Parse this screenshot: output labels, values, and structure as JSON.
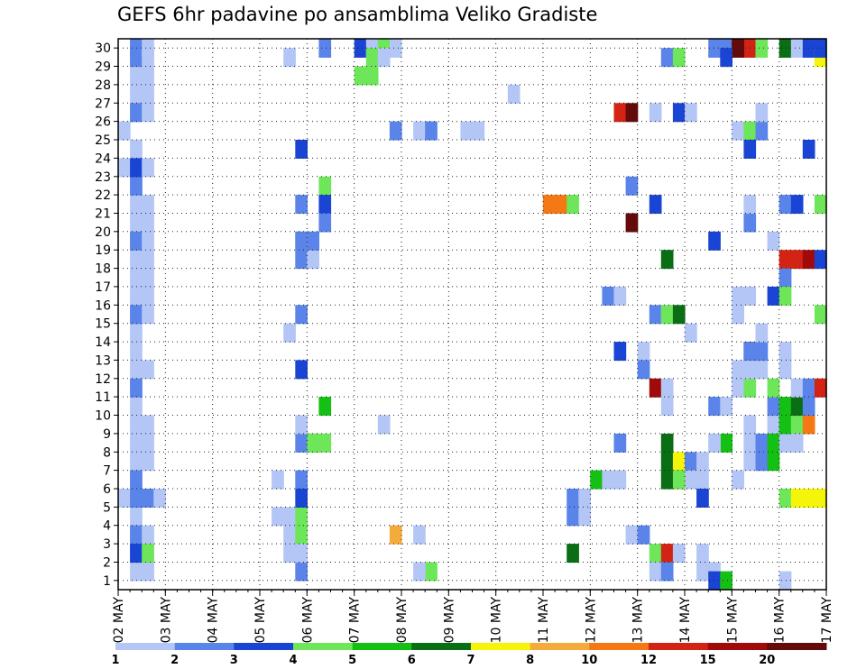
{
  "chart_data": {
    "type": "heatmap",
    "title": "GEFS 6hr padavine po ansamblima Veliko Gradiste",
    "x_tick_labels": [
      "02 MAY",
      "03 MAY",
      "04 MAY",
      "05 MAY",
      "06 MAY",
      "07 MAY",
      "08 MAY",
      "09 MAY",
      "10 MAY",
      "11 MAY",
      "12 MAY",
      "13 MAY",
      "14 MAY",
      "15 MAY",
      "16 MAY",
      "17 MAY"
    ],
    "y_tick_labels": [
      "1",
      "2",
      "3",
      "4",
      "5",
      "6",
      "7",
      "8",
      "9",
      "10",
      "11",
      "12",
      "13",
      "14",
      "15",
      "16",
      "17",
      "18",
      "19",
      "20",
      "21",
      "22",
      "23",
      "24",
      "25",
      "26",
      "27",
      "28",
      "29",
      "30"
    ],
    "y_range": [
      0,
      30
    ],
    "x_steps": 60,
    "grid": true,
    "legend_placement": "bottom",
    "legend": {
      "labels": [
        "1",
        "2",
        "3",
        "4",
        "5",
        "6",
        "7",
        "8",
        "10",
        "12",
        "15",
        "20"
      ],
      "colors": [
        "#b4c6f5",
        "#5a84ea",
        "#1a44d4",
        "#6ee65a",
        "#14c014",
        "#0a6e14",
        "#f5f50a",
        "#f5aa3c",
        "#f57814",
        "#d22314",
        "#a00a0a",
        "#640a0a"
      ]
    },
    "cells": [
      [
        1,
        29,
        1
      ],
      [
        1,
        28,
        1
      ],
      [
        1,
        27,
        1
      ],
      [
        1,
        26,
        1
      ],
      [
        1,
        25,
        1
      ],
      [
        1,
        23,
        1
      ],
      [
        1,
        16,
        1
      ],
      [
        1,
        17,
        1
      ],
      [
        1,
        15,
        1
      ],
      [
        1,
        13,
        1
      ],
      [
        1,
        12,
        1
      ],
      [
        1,
        10,
        1
      ],
      [
        1,
        9,
        1
      ],
      [
        1,
        8,
        1
      ],
      [
        1,
        7,
        1
      ],
      [
        1,
        6,
        1
      ],
      [
        1,
        5,
        1
      ],
      [
        1,
        4,
        1
      ],
      [
        1,
        3,
        1
      ],
      [
        1,
        2,
        1
      ],
      [
        1,
        1,
        1
      ],
      [
        1,
        0,
        1
      ],
      [
        1,
        18,
        1
      ],
      [
        1,
        19,
        1
      ],
      [
        1,
        20,
        1
      ],
      [
        1,
        21,
        1
      ],
      [
        1,
        22,
        1
      ],
      [
        1,
        14,
        1
      ],
      [
        1,
        11,
        1
      ],
      [
        0,
        24,
        1
      ],
      [
        0,
        22,
        1
      ],
      [
        0,
        4,
        1
      ],
      [
        1,
        29,
        2
      ],
      [
        1,
        28,
        2
      ],
      [
        1,
        25,
        2
      ],
      [
        1,
        21,
        2
      ],
      [
        1,
        18,
        2
      ],
      [
        1,
        14,
        2
      ],
      [
        1,
        10,
        2
      ],
      [
        1,
        4,
        2
      ],
      [
        1,
        2,
        2
      ],
      [
        1,
        5,
        2
      ],
      [
        1,
        22,
        3
      ],
      [
        1,
        1,
        3
      ],
      [
        2,
        29,
        1
      ],
      [
        2,
        28,
        1
      ],
      [
        2,
        27,
        1
      ],
      [
        2,
        26,
        1
      ],
      [
        2,
        25,
        1
      ],
      [
        2,
        22,
        1
      ],
      [
        2,
        20,
        1
      ],
      [
        2,
        19,
        1
      ],
      [
        2,
        18,
        1
      ],
      [
        2,
        17,
        1
      ],
      [
        2,
        16,
        1
      ],
      [
        2,
        15,
        1
      ],
      [
        2,
        14,
        1
      ],
      [
        2,
        11,
        1
      ],
      [
        2,
        8,
        1
      ],
      [
        2,
        7,
        1
      ],
      [
        2,
        6,
        1
      ],
      [
        2,
        4,
        2
      ],
      [
        2,
        2,
        1
      ],
      [
        2,
        0,
        1
      ],
      [
        2,
        1,
        4
      ],
      [
        3,
        4,
        1
      ],
      [
        13,
        5,
        1
      ],
      [
        13,
        3,
        1
      ],
      [
        14,
        28,
        1
      ],
      [
        14,
        13,
        1
      ],
      [
        14,
        3,
        1
      ],
      [
        14,
        2,
        1
      ],
      [
        14,
        1,
        1
      ],
      [
        15,
        20,
        2
      ],
      [
        15,
        23,
        3
      ],
      [
        15,
        17,
        2
      ],
      [
        15,
        14,
        2
      ],
      [
        15,
        11,
        3
      ],
      [
        15,
        7,
        2
      ],
      [
        15,
        5,
        2
      ],
      [
        15,
        3,
        4
      ],
      [
        15,
        2,
        4
      ],
      [
        15,
        0,
        2
      ],
      [
        15,
        8,
        1
      ],
      [
        15,
        1,
        1
      ],
      [
        15,
        4,
        3
      ],
      [
        15,
        18,
        4
      ],
      [
        15,
        18,
        2
      ],
      [
        16,
        18,
        1
      ],
      [
        16,
        17,
        1
      ],
      [
        16,
        18,
        2
      ],
      [
        16,
        7,
        6
      ],
      [
        16,
        7,
        4
      ],
      [
        17,
        9,
        5
      ],
      [
        17,
        7,
        4
      ],
      [
        17,
        29,
        2
      ],
      [
        17,
        21,
        4
      ],
      [
        17,
        20,
        3
      ],
      [
        17,
        19,
        2
      ],
      [
        20,
        29,
        3
      ],
      [
        21,
        29,
        1
      ],
      [
        21,
        28,
        4
      ],
      [
        22,
        29,
        4
      ],
      [
        20,
        27,
        4
      ],
      [
        21,
        27,
        4
      ],
      [
        23,
        2,
        8
      ],
      [
        22,
        8,
        1
      ],
      [
        22,
        28,
        1
      ],
      [
        23,
        24,
        2
      ],
      [
        23,
        29,
        1
      ],
      [
        25,
        24,
        1
      ],
      [
        25,
        2,
        1
      ],
      [
        26,
        24,
        2
      ],
      [
        26,
        0,
        4
      ],
      [
        25,
        0,
        1
      ],
      [
        29,
        24,
        1
      ],
      [
        30,
        24,
        1
      ],
      [
        33,
        26,
        1
      ],
      [
        36,
        20,
        9
      ],
      [
        37,
        20,
        9
      ],
      [
        38,
        20,
        4
      ],
      [
        38,
        3,
        2
      ],
      [
        39,
        3,
        1
      ],
      [
        38,
        1,
        6
      ],
      [
        38,
        4,
        2
      ],
      [
        39,
        4,
        1
      ],
      [
        40,
        5,
        5
      ],
      [
        41,
        5,
        1
      ],
      [
        42,
        5,
        1
      ],
      [
        41,
        15,
        2
      ],
      [
        42,
        15,
        1
      ],
      [
        42,
        25,
        10
      ],
      [
        43,
        25,
        12
      ],
      [
        43,
        19,
        12
      ],
      [
        43,
        21,
        2
      ],
      [
        42,
        12,
        3
      ],
      [
        42,
        7,
        2
      ],
      [
        43,
        2,
        1
      ],
      [
        44,
        2,
        2
      ],
      [
        44,
        12,
        1
      ],
      [
        44,
        11,
        2
      ],
      [
        45,
        10,
        11
      ],
      [
        46,
        10,
        1
      ],
      [
        45,
        25,
        1
      ],
      [
        45,
        20,
        3
      ],
      [
        45,
        14,
        2
      ],
      [
        46,
        14,
        1
      ],
      [
        46,
        28,
        2
      ],
      [
        47,
        28,
        4
      ],
      [
        45,
        1,
        4
      ],
      [
        46,
        1,
        10
      ],
      [
        47,
        1,
        1
      ],
      [
        45,
        0,
        1
      ],
      [
        46,
        0,
        2
      ],
      [
        46,
        17,
        6
      ],
      [
        46,
        14,
        4
      ],
      [
        47,
        14,
        6
      ],
      [
        46,
        6,
        6
      ],
      [
        46,
        7,
        6
      ],
      [
        46,
        5,
        6
      ],
      [
        47,
        6,
        7
      ],
      [
        47,
        5,
        11
      ],
      [
        48,
        6,
        2
      ],
      [
        48,
        5,
        1
      ],
      [
        49,
        6,
        1
      ],
      [
        49,
        5,
        1
      ],
      [
        46,
        9,
        1
      ],
      [
        47,
        25,
        3
      ],
      [
        48,
        25,
        1
      ],
      [
        48,
        13,
        1
      ],
      [
        47,
        5,
        4
      ],
      [
        49,
        4,
        3
      ],
      [
        49,
        1,
        1
      ],
      [
        49,
        0,
        1
      ],
      [
        50,
        0,
        1
      ],
      [
        50,
        18,
        3
      ],
      [
        50,
        9,
        2
      ],
      [
        51,
        9,
        1
      ],
      [
        50,
        29,
        2
      ],
      [
        51,
        29,
        2
      ],
      [
        52,
        29,
        11
      ],
      [
        53,
        29,
        10
      ],
      [
        54,
        29,
        4
      ],
      [
        50,
        -1,
        3
      ],
      [
        51,
        -1,
        5
      ],
      [
        52,
        29,
        12
      ],
      [
        51,
        28,
        3
      ],
      [
        51,
        7,
        5
      ],
      [
        50,
        7,
        1
      ],
      [
        52,
        24,
        1
      ],
      [
        52,
        14,
        1
      ],
      [
        52,
        10,
        1
      ],
      [
        53,
        10,
        4
      ],
      [
        52,
        11,
        1
      ],
      [
        52,
        5,
        1
      ],
      [
        52,
        15,
        1
      ],
      [
        53,
        24,
        4
      ],
      [
        54,
        24,
        2
      ],
      [
        53,
        23,
        3
      ],
      [
        53,
        19,
        2
      ],
      [
        53,
        20,
        1
      ],
      [
        53,
        15,
        1
      ],
      [
        54,
        12,
        1
      ],
      [
        53,
        12,
        11
      ],
      [
        53,
        11,
        1
      ],
      [
        54,
        11,
        1
      ],
      [
        53,
        7,
        1
      ],
      [
        53,
        6,
        1
      ],
      [
        54,
        6,
        2
      ],
      [
        53,
        8,
        1
      ],
      [
        53,
        12,
        2
      ],
      [
        54,
        12,
        2
      ],
      [
        54,
        13,
        1
      ],
      [
        54,
        7,
        2
      ],
      [
        54,
        25,
        1
      ],
      [
        55,
        18,
        1
      ],
      [
        55,
        15,
        3
      ],
      [
        55,
        8,
        1
      ],
      [
        55,
        9,
        2
      ],
      [
        55,
        10,
        4
      ],
      [
        55,
        7,
        5
      ],
      [
        55,
        6,
        5
      ],
      [
        56,
        29,
        6
      ],
      [
        56,
        20,
        2
      ],
      [
        56,
        17,
        10
      ],
      [
        56,
        16,
        2
      ],
      [
        56,
        15,
        4
      ],
      [
        56,
        7,
        1
      ],
      [
        56,
        8,
        5
      ],
      [
        56,
        9,
        5
      ],
      [
        56,
        11,
        1
      ],
      [
        56,
        12,
        1
      ],
      [
        56,
        4,
        4
      ],
      [
        56,
        -1,
        1
      ],
      [
        57,
        29,
        1
      ],
      [
        57,
        20,
        3
      ],
      [
        57,
        17,
        10
      ],
      [
        57,
        8,
        4
      ],
      [
        57,
        9,
        6
      ],
      [
        57,
        10,
        1
      ],
      [
        57,
        4,
        7
      ],
      [
        57,
        7,
        1
      ],
      [
        58,
        29,
        3
      ],
      [
        58,
        23,
        3
      ],
      [
        58,
        17,
        11
      ],
      [
        58,
        10,
        2
      ],
      [
        58,
        8,
        9
      ],
      [
        58,
        9,
        2
      ],
      [
        58,
        4,
        7
      ],
      [
        59,
        28,
        7
      ],
      [
        59,
        29,
        3
      ],
      [
        59,
        20,
        4
      ],
      [
        59,
        17,
        3
      ],
      [
        59,
        14,
        4
      ],
      [
        59,
        10,
        10
      ],
      [
        59,
        4,
        7
      ]
    ]
  }
}
